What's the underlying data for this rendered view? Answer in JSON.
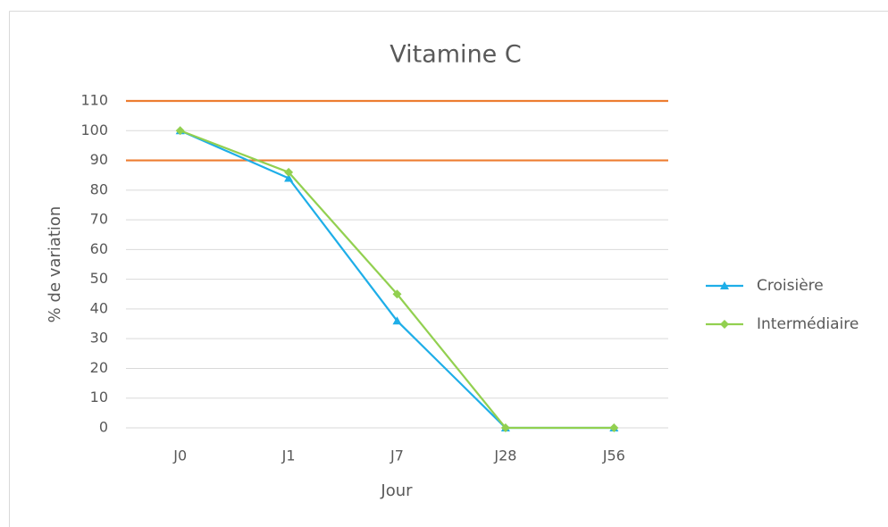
{
  "chart_data": {
    "type": "line",
    "title": "Vitamine C",
    "x_label": "Jour",
    "y_label": "% de variation",
    "categories": [
      "J0",
      "J1",
      "J7",
      "J28",
      "J56"
    ],
    "series": [
      {
        "name": "Croisière",
        "color": "#1eaee8",
        "marker": "triangle",
        "values": [
          100,
          84,
          36,
          0,
          0
        ]
      },
      {
        "name": "Intermédiaire",
        "color": "#92d050",
        "marker": "diamond",
        "values": [
          100,
          86,
          45,
          0,
          0
        ]
      }
    ],
    "reference_lines": [
      110,
      90
    ],
    "reference_color": "#ed7d31",
    "ylim": [
      0,
      110
    ],
    "yticks": [
      0,
      10,
      20,
      30,
      40,
      50,
      60,
      70,
      80,
      90,
      100,
      110
    ],
    "grid": true,
    "legend": "right"
  }
}
